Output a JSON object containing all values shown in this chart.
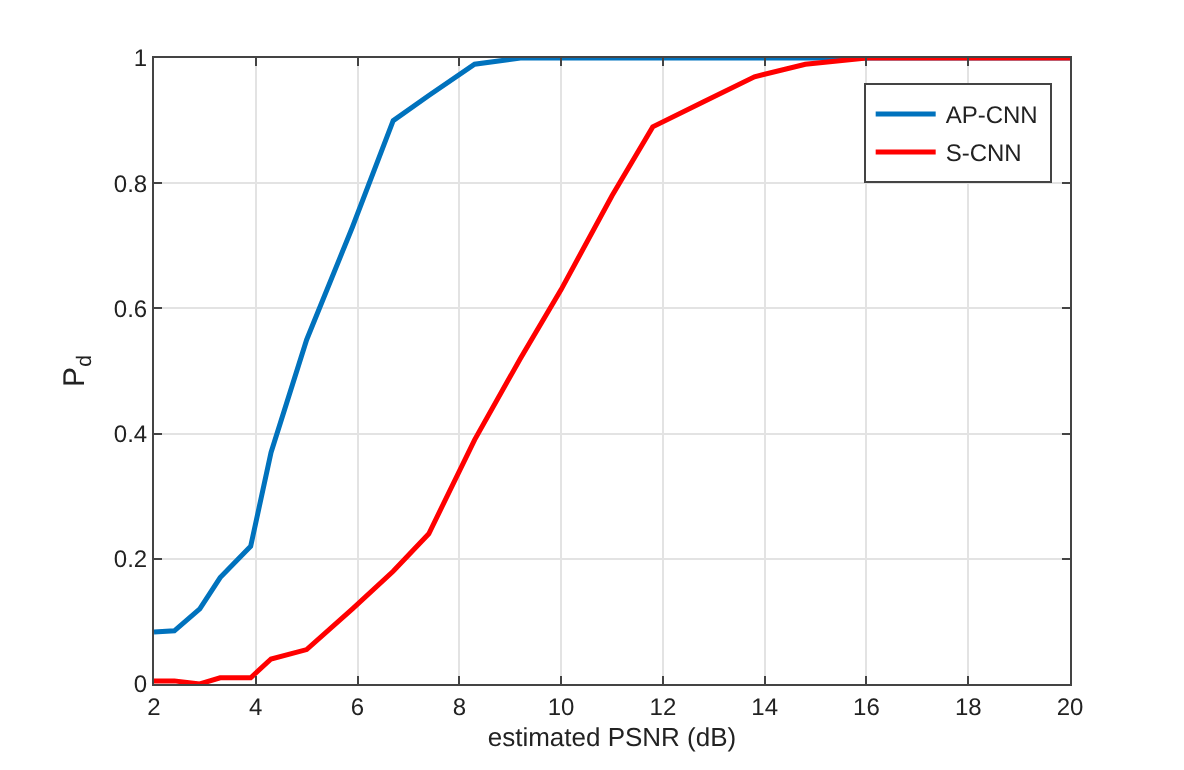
{
  "chart_data": {
    "type": "line",
    "xlabel": "estimated PSNR (dB)",
    "ylabel": "P$_{d}$",
    "xlim": [
      2,
      20
    ],
    "xticks": [
      2,
      4,
      6,
      8,
      10,
      12,
      14,
      16,
      18,
      20
    ],
    "ylim": [
      0,
      1
    ],
    "yticks": [
      0,
      0.2,
      0.4,
      0.6,
      0.8,
      1
    ],
    "grid": true,
    "legend": "top right",
    "line_style": "solid",
    "marker": "none",
    "series": [
      {
        "name": "AP-CNN",
        "color": "#0072bd",
        "x": [
          2,
          2.4,
          2.9,
          3.3,
          3.9,
          4.3,
          5,
          5.9,
          6.7,
          7.4,
          8.3,
          9.2,
          10,
          12,
          14,
          16,
          18,
          20
        ],
        "values": [
          0.083,
          0.085,
          0.12,
          0.17,
          0.22,
          0.37,
          0.55,
          0.73,
          0.9,
          0.94,
          0.99,
          1,
          1,
          1,
          1,
          1,
          1,
          1
        ]
      },
      {
        "name": "S-CNN",
        "color": "#ff0000",
        "x": [
          2,
          2.4,
          2.9,
          3.3,
          3.9,
          4.3,
          5,
          5.9,
          6.7,
          7.4,
          8.3,
          9.2,
          10,
          11,
          11.8,
          12.8,
          13.8,
          14.8,
          16,
          18,
          20
        ],
        "values": [
          0.005,
          0.005,
          0,
          0.01,
          0.01,
          0.04,
          0.055,
          0.12,
          0.18,
          0.24,
          0.39,
          0.52,
          0.63,
          0.78,
          0.89,
          0.93,
          0.97,
          0.99,
          1,
          1,
          1
        ]
      }
    ]
  }
}
